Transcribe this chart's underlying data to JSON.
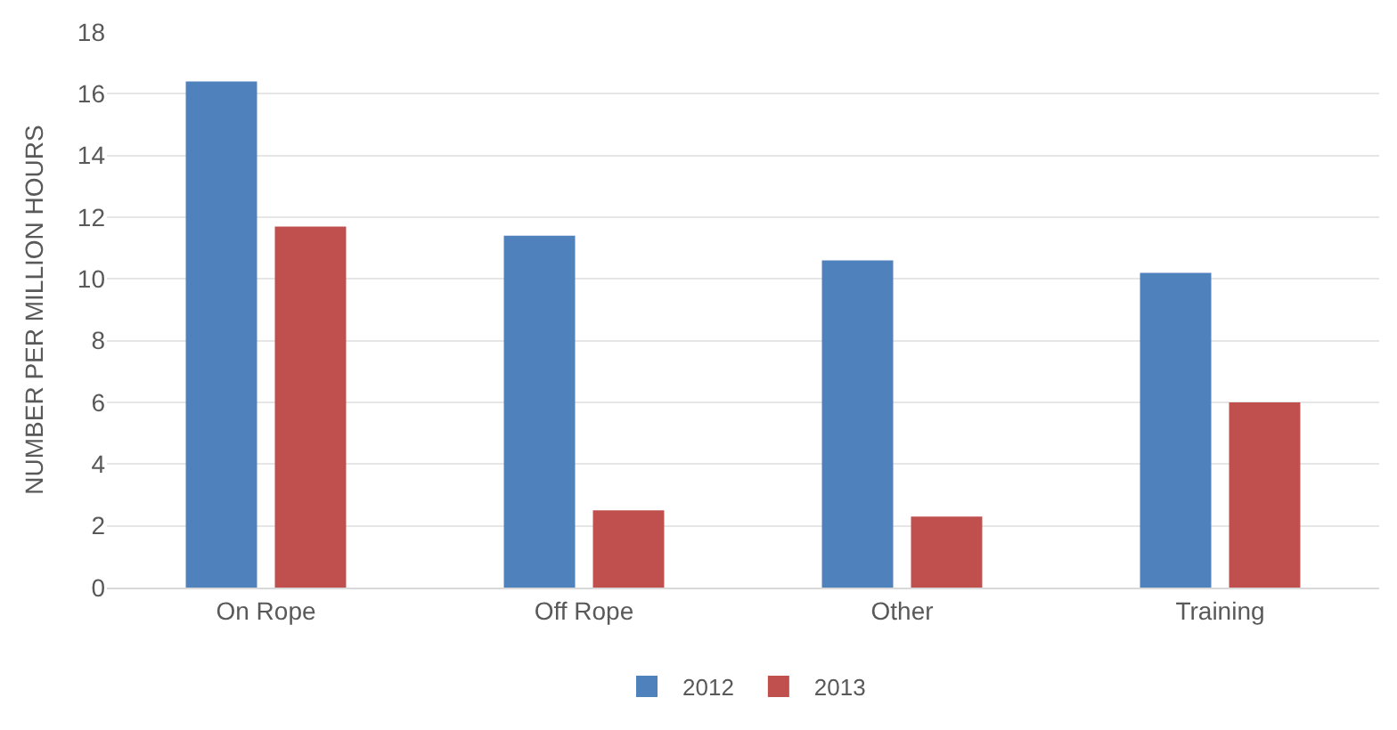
{
  "chart_data": {
    "type": "bar",
    "ylabel": "NUMBER PER MILLION HOURS",
    "categories": [
      "On Rope",
      "Off Rope",
      "Other",
      "Training"
    ],
    "series": [
      {
        "name": "2012",
        "color": "#4f81bd",
        "values": [
          16.4,
          11.4,
          10.6,
          10.2
        ]
      },
      {
        "name": "2013",
        "color": "#c0504d",
        "values": [
          11.7,
          2.5,
          2.3,
          6.0
        ]
      }
    ],
    "ylim": [
      0,
      18
    ],
    "yticks": [
      0,
      2,
      4,
      6,
      8,
      10,
      12,
      14,
      16,
      18
    ],
    "grid": "y",
    "legend": "bottom"
  }
}
